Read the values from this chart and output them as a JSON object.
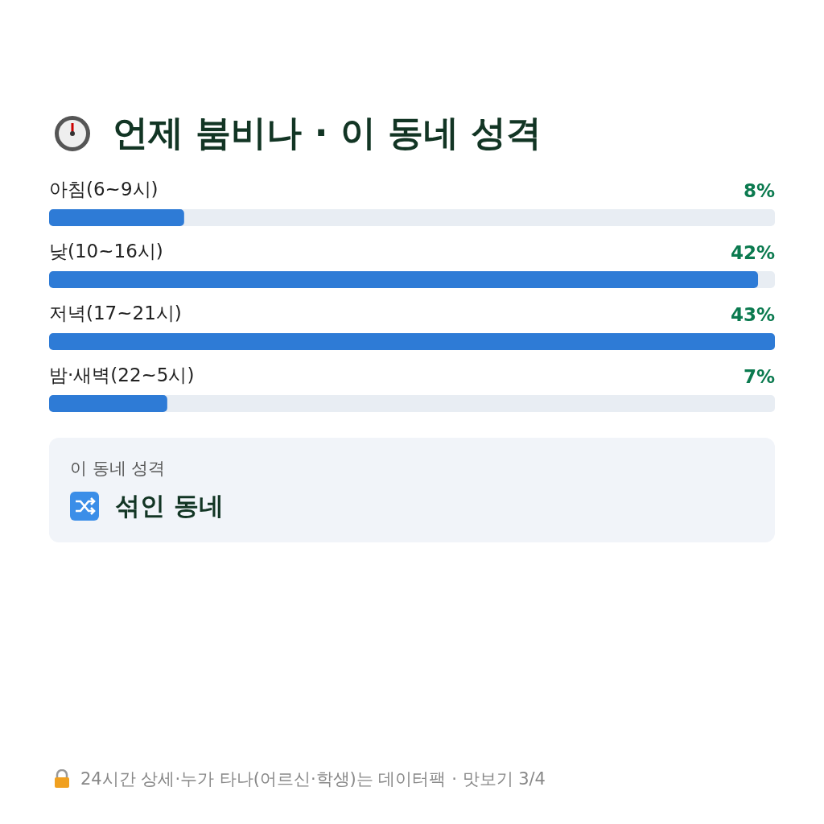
{
  "chart_data": {
    "type": "bar",
    "orientation": "horizontal",
    "xlim": [
      0,
      43
    ],
    "tick_labels": false,
    "title": "언제 붐비나 · 이 동네 성격",
    "categories": [
      "아침(6~9시)",
      "낮(10~16시)",
      "저녁(17~21시)",
      "밤·새벽(22~5시)"
    ],
    "values": [
      8,
      42,
      43,
      7
    ],
    "value_labels": [
      "8%",
      "42%",
      "43%",
      "7%"
    ],
    "color": "#2e7bd6",
    "annotations": [
      "이 동네 성격",
      "섞인 동네",
      "24시간 상세·누가 타나(어르신·학생)는 데이터팩 · 맛보기 3/4"
    ]
  }
}
